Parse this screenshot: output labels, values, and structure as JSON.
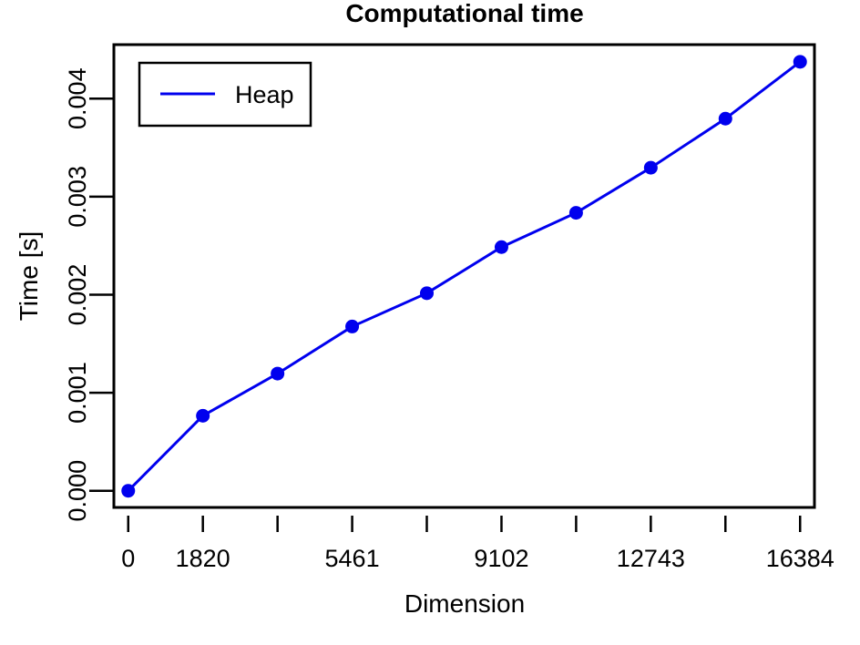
{
  "chart_data": {
    "type": "line",
    "title": "Computational time",
    "xlabel": "Dimension",
    "ylabel": "Time [s]",
    "xlim": [
      -350,
      16734
    ],
    "ylim": [
      -0.00017,
      0.00455
    ],
    "x_ticks": [
      0,
      1820,
      3641,
      5461,
      7281,
      9102,
      10922,
      12743,
      14563,
      16384
    ],
    "x_tick_labels": [
      "0",
      "1820",
      "",
      "5461",
      "",
      "9102",
      "",
      "12743",
      "",
      "16384"
    ],
    "y_ticks": [
      0.0,
      0.001,
      0.002,
      0.003,
      0.004
    ],
    "y_tick_labels": [
      "0.000",
      "0.001",
      "0.002",
      "0.003",
      "0.004"
    ],
    "legend_position": "top-left",
    "grid": false,
    "series": [
      {
        "name": "Heap",
        "color": "#0000ee",
        "x": [
          0,
          1820,
          3641,
          5461,
          7281,
          9102,
          10922,
          12743,
          14563,
          16384
        ],
        "y": [
          0.0,
          0.000765,
          0.001195,
          0.001675,
          0.002015,
          0.002485,
          0.002835,
          0.003295,
          0.003795,
          0.004375
        ]
      }
    ]
  }
}
